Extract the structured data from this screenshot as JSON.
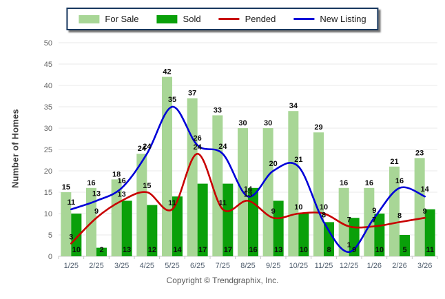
{
  "legend": {
    "items": [
      {
        "label": "For Sale",
        "type": "swatch",
        "color": "#A8D696"
      },
      {
        "label": "Sold",
        "type": "swatch",
        "color": "#0AA00A"
      },
      {
        "label": "Pended",
        "type": "line",
        "color": "#C80000"
      },
      {
        "label": "New Listing",
        "type": "line",
        "color": "#0000D8"
      }
    ]
  },
  "chart_data": {
    "type": "combo",
    "categories": [
      "1/25",
      "2/25",
      "3/25",
      "4/25",
      "5/25",
      "6/25",
      "7/25",
      "8/25",
      "9/25",
      "10/25",
      "11/25",
      "12/25",
      "1/26",
      "2/26",
      "3/26"
    ],
    "series": [
      {
        "name": "For Sale",
        "type": "bar",
        "color": "#A8D696",
        "values": [
          15,
          16,
          18,
          24,
          42,
          37,
          33,
          30,
          30,
          34,
          29,
          16,
          16,
          21,
          23
        ]
      },
      {
        "name": "Sold",
        "type": "bar",
        "color": "#0AA00A",
        "values": [
          10,
          2,
          13,
          12,
          14,
          17,
          17,
          16,
          13,
          10,
          8,
          9,
          10,
          5,
          11
        ]
      },
      {
        "name": "Pended",
        "type": "line",
        "color": "#C80000",
        "values": [
          3,
          9,
          13,
          15,
          11,
          24,
          11,
          13,
          9,
          10,
          10,
          7,
          7,
          8,
          9
        ]
      },
      {
        "name": "New Listing",
        "type": "line",
        "color": "#0000D8",
        "values": [
          11,
          13,
          16,
          24,
          35,
          26,
          24,
          14,
          20,
          21,
          8,
          1,
          9,
          16,
          14
        ]
      }
    ],
    "title": "",
    "xlabel": "",
    "ylabel": "Number of Homes",
    "ylim": [
      0,
      50
    ],
    "y_ticks": [
      0,
      5,
      10,
      15,
      20,
      25,
      30,
      35,
      40,
      45,
      50
    ],
    "grid": true,
    "legend_position": "top"
  },
  "footer": {
    "copyright": "Copyright © Trendgraphix, Inc."
  }
}
